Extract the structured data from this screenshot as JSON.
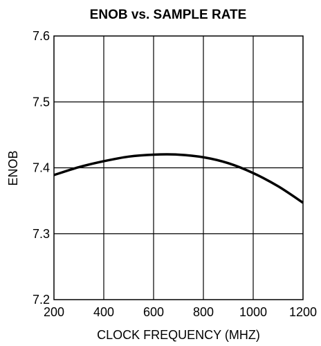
{
  "chart_data": {
    "type": "line",
    "title": "ENOB vs. SAMPLE RATE",
    "xlabel": "CLOCK FREQUENCY (MHZ)",
    "ylabel": "ENOB",
    "xlim": [
      200,
      1200
    ],
    "ylim": [
      7.2,
      7.6
    ],
    "x_ticks": [
      "200",
      "400",
      "600",
      "800",
      "1000",
      "1200"
    ],
    "y_ticks": [
      "7.2",
      "7.3",
      "7.4",
      "7.5",
      "7.6"
    ],
    "grid": true,
    "series": [
      {
        "x": [
          200,
          300,
          400,
          500,
          600,
          700,
          800,
          900,
          1000,
          1100,
          1200
        ],
        "y": [
          7.389,
          7.401,
          7.41,
          7.417,
          7.42,
          7.42,
          7.416,
          7.407,
          7.392,
          7.372,
          7.347
        ]
      }
    ]
  }
}
